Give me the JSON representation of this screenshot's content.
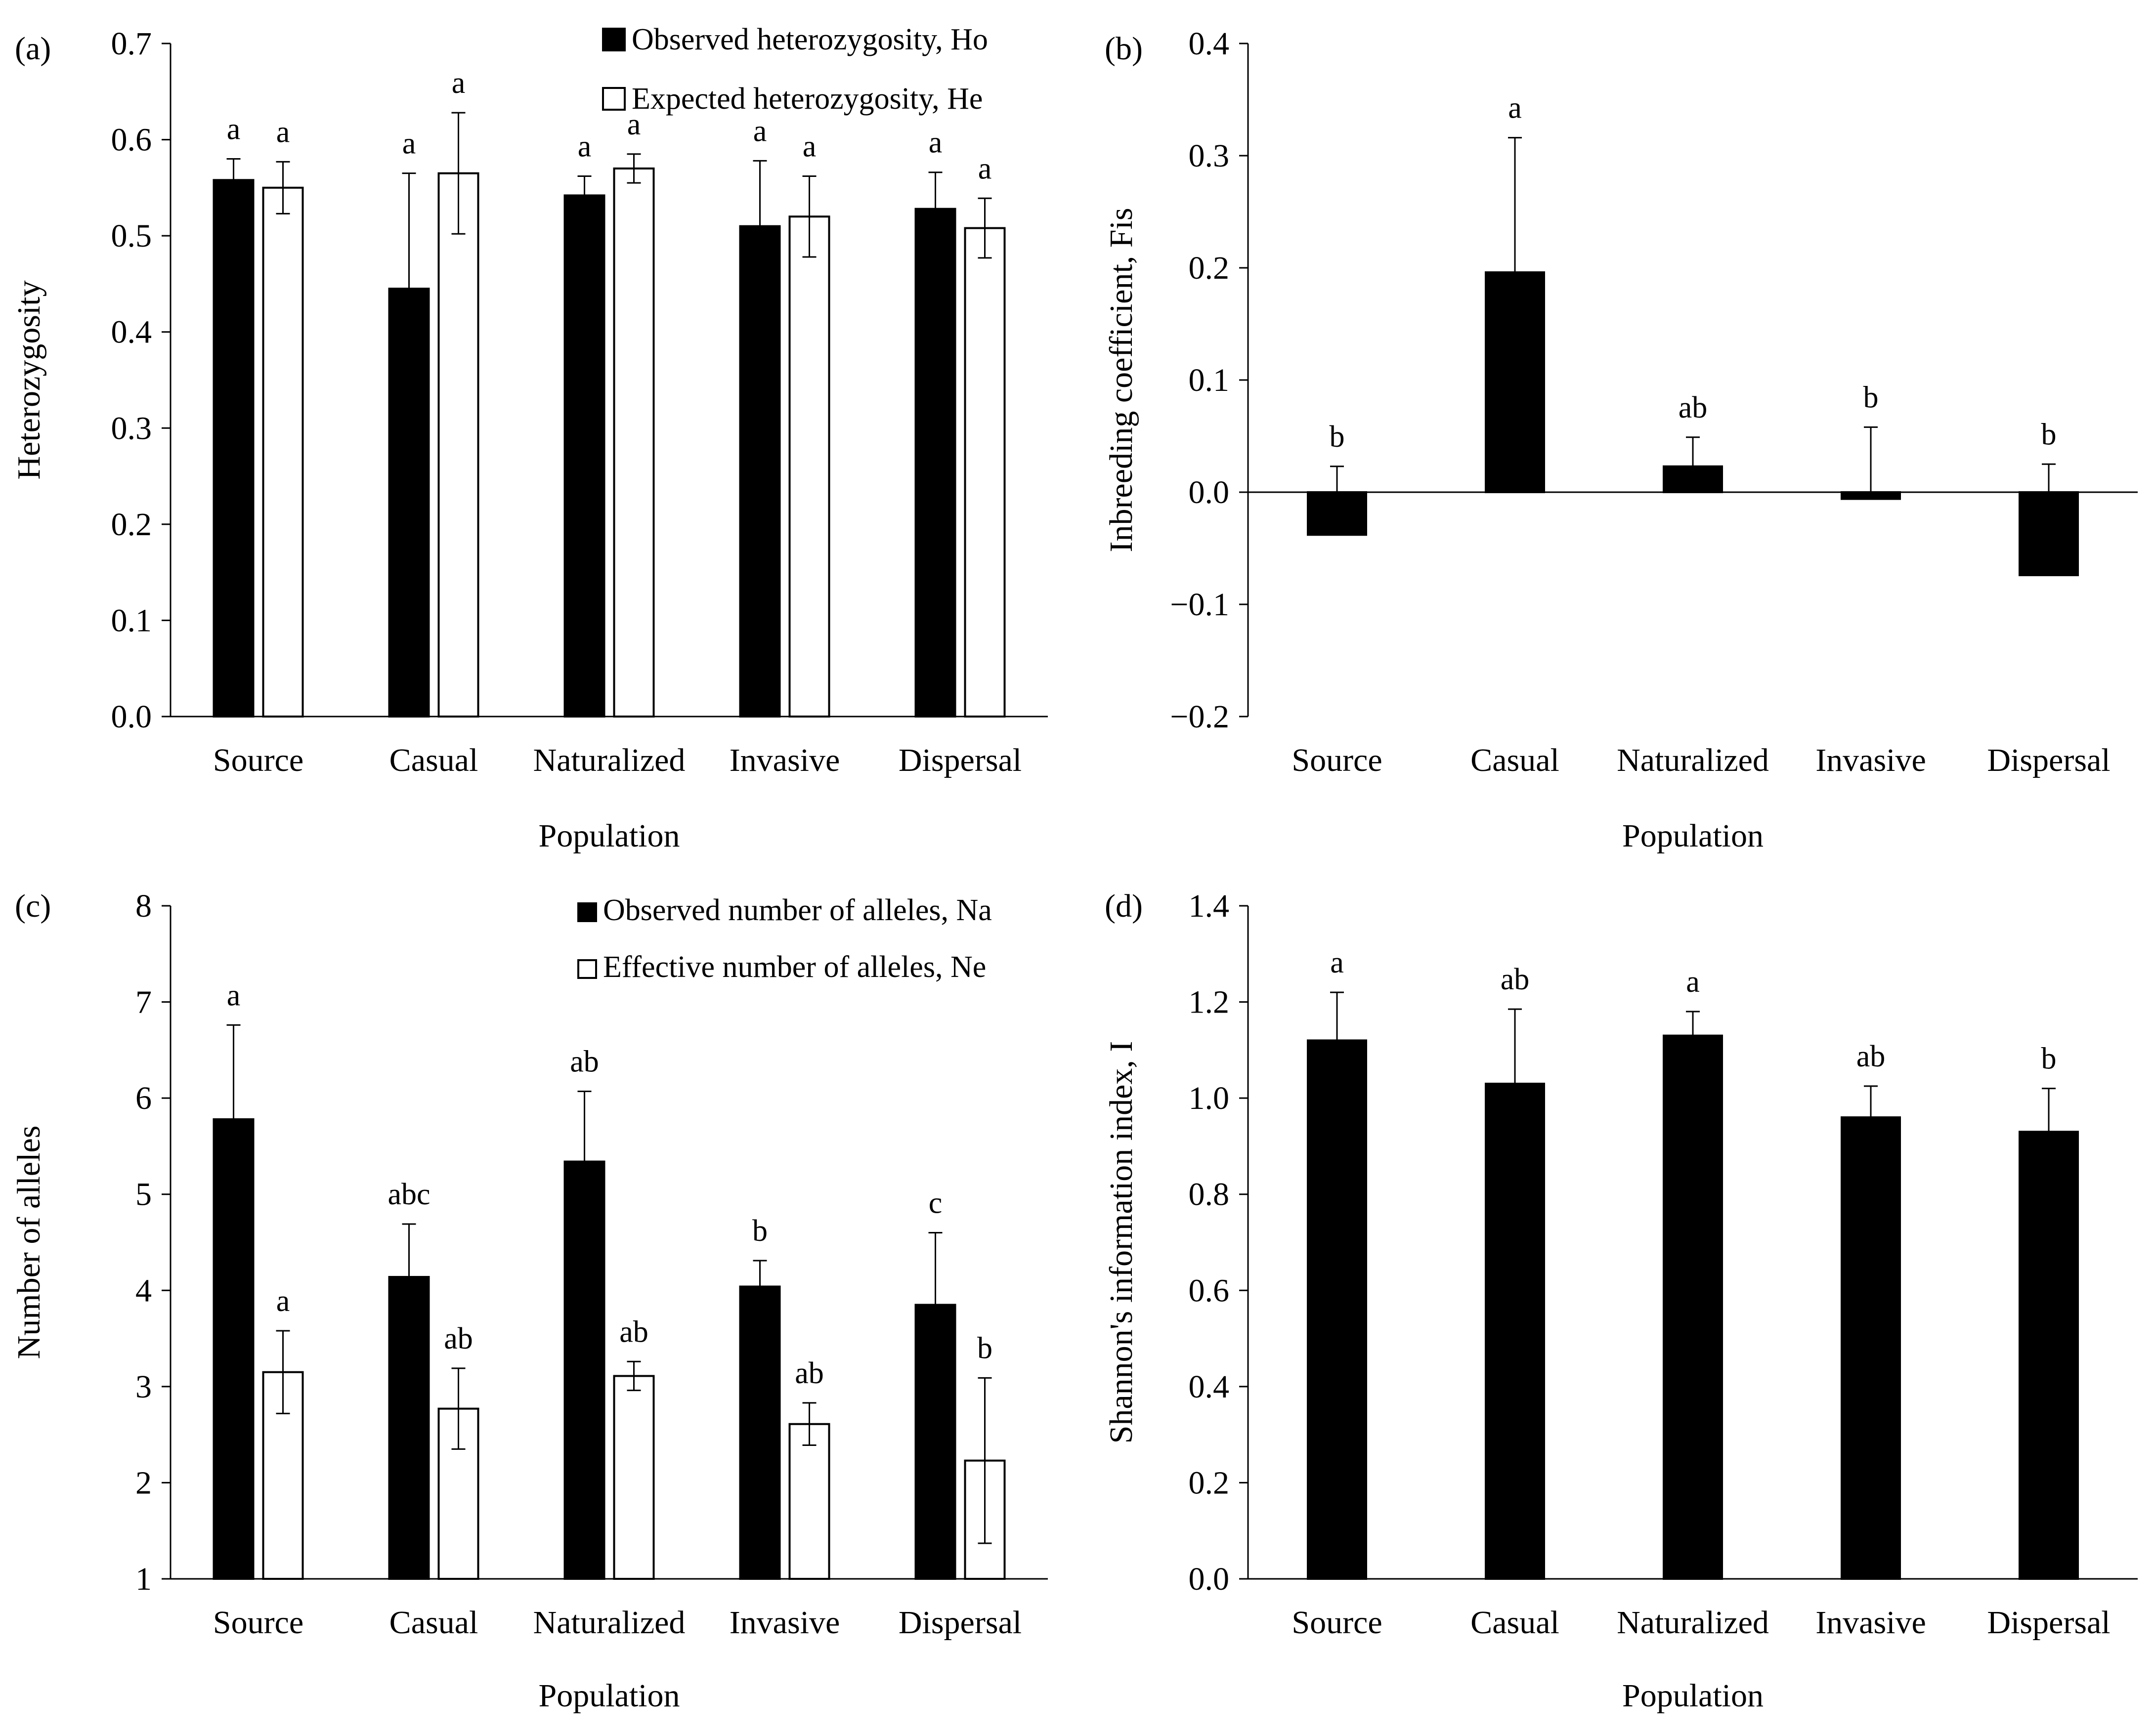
{
  "chart_data": [
    {
      "panel_label": "(a)",
      "type": "bar",
      "xlabel": "Population",
      "ylabel": "Heterozygosity",
      "ylim": [
        0.0,
        0.7
      ],
      "yticks": [
        "0.0",
        "0.1",
        "0.2",
        "0.3",
        "0.4",
        "0.5",
        "0.6",
        "0.7"
      ],
      "categories": [
        "Source",
        "Casual",
        "Naturalized",
        "Invasive",
        "Dispersal"
      ],
      "legend": "top-right",
      "series": [
        {
          "name": "Observed heterozygosity, Ho",
          "fill": "#000000",
          "values": [
            0.558,
            0.445,
            0.542,
            0.51,
            0.528
          ],
          "errors": [
            0.022,
            0.12,
            0.02,
            0.068,
            0.038
          ],
          "letters": [
            "a",
            "a",
            "a",
            "a",
            "a"
          ]
        },
        {
          "name": "Expected heterozygosity, He",
          "fill": "#ffffff",
          "values": [
            0.55,
            0.565,
            0.57,
            0.52,
            0.508
          ],
          "errors": [
            0.027,
            0.063,
            0.015,
            0.042,
            0.031
          ],
          "letters": [
            "a",
            "a",
            "a",
            "a",
            "a"
          ]
        }
      ]
    },
    {
      "panel_label": "(b)",
      "type": "bar",
      "xlabel": "Population",
      "ylabel": "Inbreeding coefficient, Fis",
      "ylim": [
        -0.2,
        0.4
      ],
      "yticks": [
        "−0.2",
        "−0.1",
        "0.0",
        "0.1",
        "0.2",
        "0.3",
        "0.4"
      ],
      "categories": [
        "Source",
        "Casual",
        "Naturalized",
        "Invasive",
        "Dispersal"
      ],
      "series": [
        {
          "name": "Fis",
          "fill": "#000000",
          "values": [
            -0.038,
            0.196,
            0.023,
            -0.006,
            -0.074
          ],
          "errors": [
            0.061,
            0.12,
            0.026,
            0.064,
            0.099
          ],
          "letters": [
            "b",
            "a",
            "ab",
            "b",
            "b"
          ]
        }
      ]
    },
    {
      "panel_label": "(c)",
      "type": "bar",
      "xlabel": "Population",
      "ylabel": "Number of alleles",
      "ylim": [
        1,
        8
      ],
      "yticks": [
        "1",
        "2",
        "3",
        "4",
        "5",
        "6",
        "7",
        "8"
      ],
      "categories": [
        "Source",
        "Casual",
        "Naturalized",
        "Invasive",
        "Dispersal"
      ],
      "legend": "top-right",
      "series": [
        {
          "name": "Observed number of alleles, Na",
          "fill": "#000000",
          "values": [
            5.78,
            4.14,
            5.34,
            4.04,
            3.85
          ],
          "errors": [
            0.98,
            0.55,
            0.73,
            0.27,
            0.75
          ],
          "letters": [
            "a",
            "abc",
            "ab",
            "b",
            "c"
          ]
        },
        {
          "name": "Effective number of alleles, Ne",
          "fill": "#ffffff",
          "values": [
            3.15,
            2.77,
            3.11,
            2.61,
            2.23
          ],
          "errors": [
            0.43,
            0.42,
            0.15,
            0.22,
            0.86
          ],
          "letters": [
            "a",
            "ab",
            "ab",
            "ab",
            "b"
          ]
        }
      ]
    },
    {
      "panel_label": "(d)",
      "type": "bar",
      "xlabel": "Population",
      "ylabel": "Shannon's information index, I",
      "ylim": [
        0.0,
        1.4
      ],
      "yticks": [
        "0.0",
        "0.2",
        "0.4",
        "0.6",
        "0.8",
        "1.0",
        "1.2",
        "1.4"
      ],
      "categories": [
        "Source",
        "Casual",
        "Naturalized",
        "Invasive",
        "Dispersal"
      ],
      "series": [
        {
          "name": "I",
          "fill": "#000000",
          "values": [
            1.12,
            1.03,
            1.13,
            0.96,
            0.93
          ],
          "errors": [
            0.1,
            0.155,
            0.05,
            0.065,
            0.09
          ],
          "letters": [
            "a",
            "ab",
            "a",
            "ab",
            "b"
          ]
        }
      ]
    }
  ]
}
